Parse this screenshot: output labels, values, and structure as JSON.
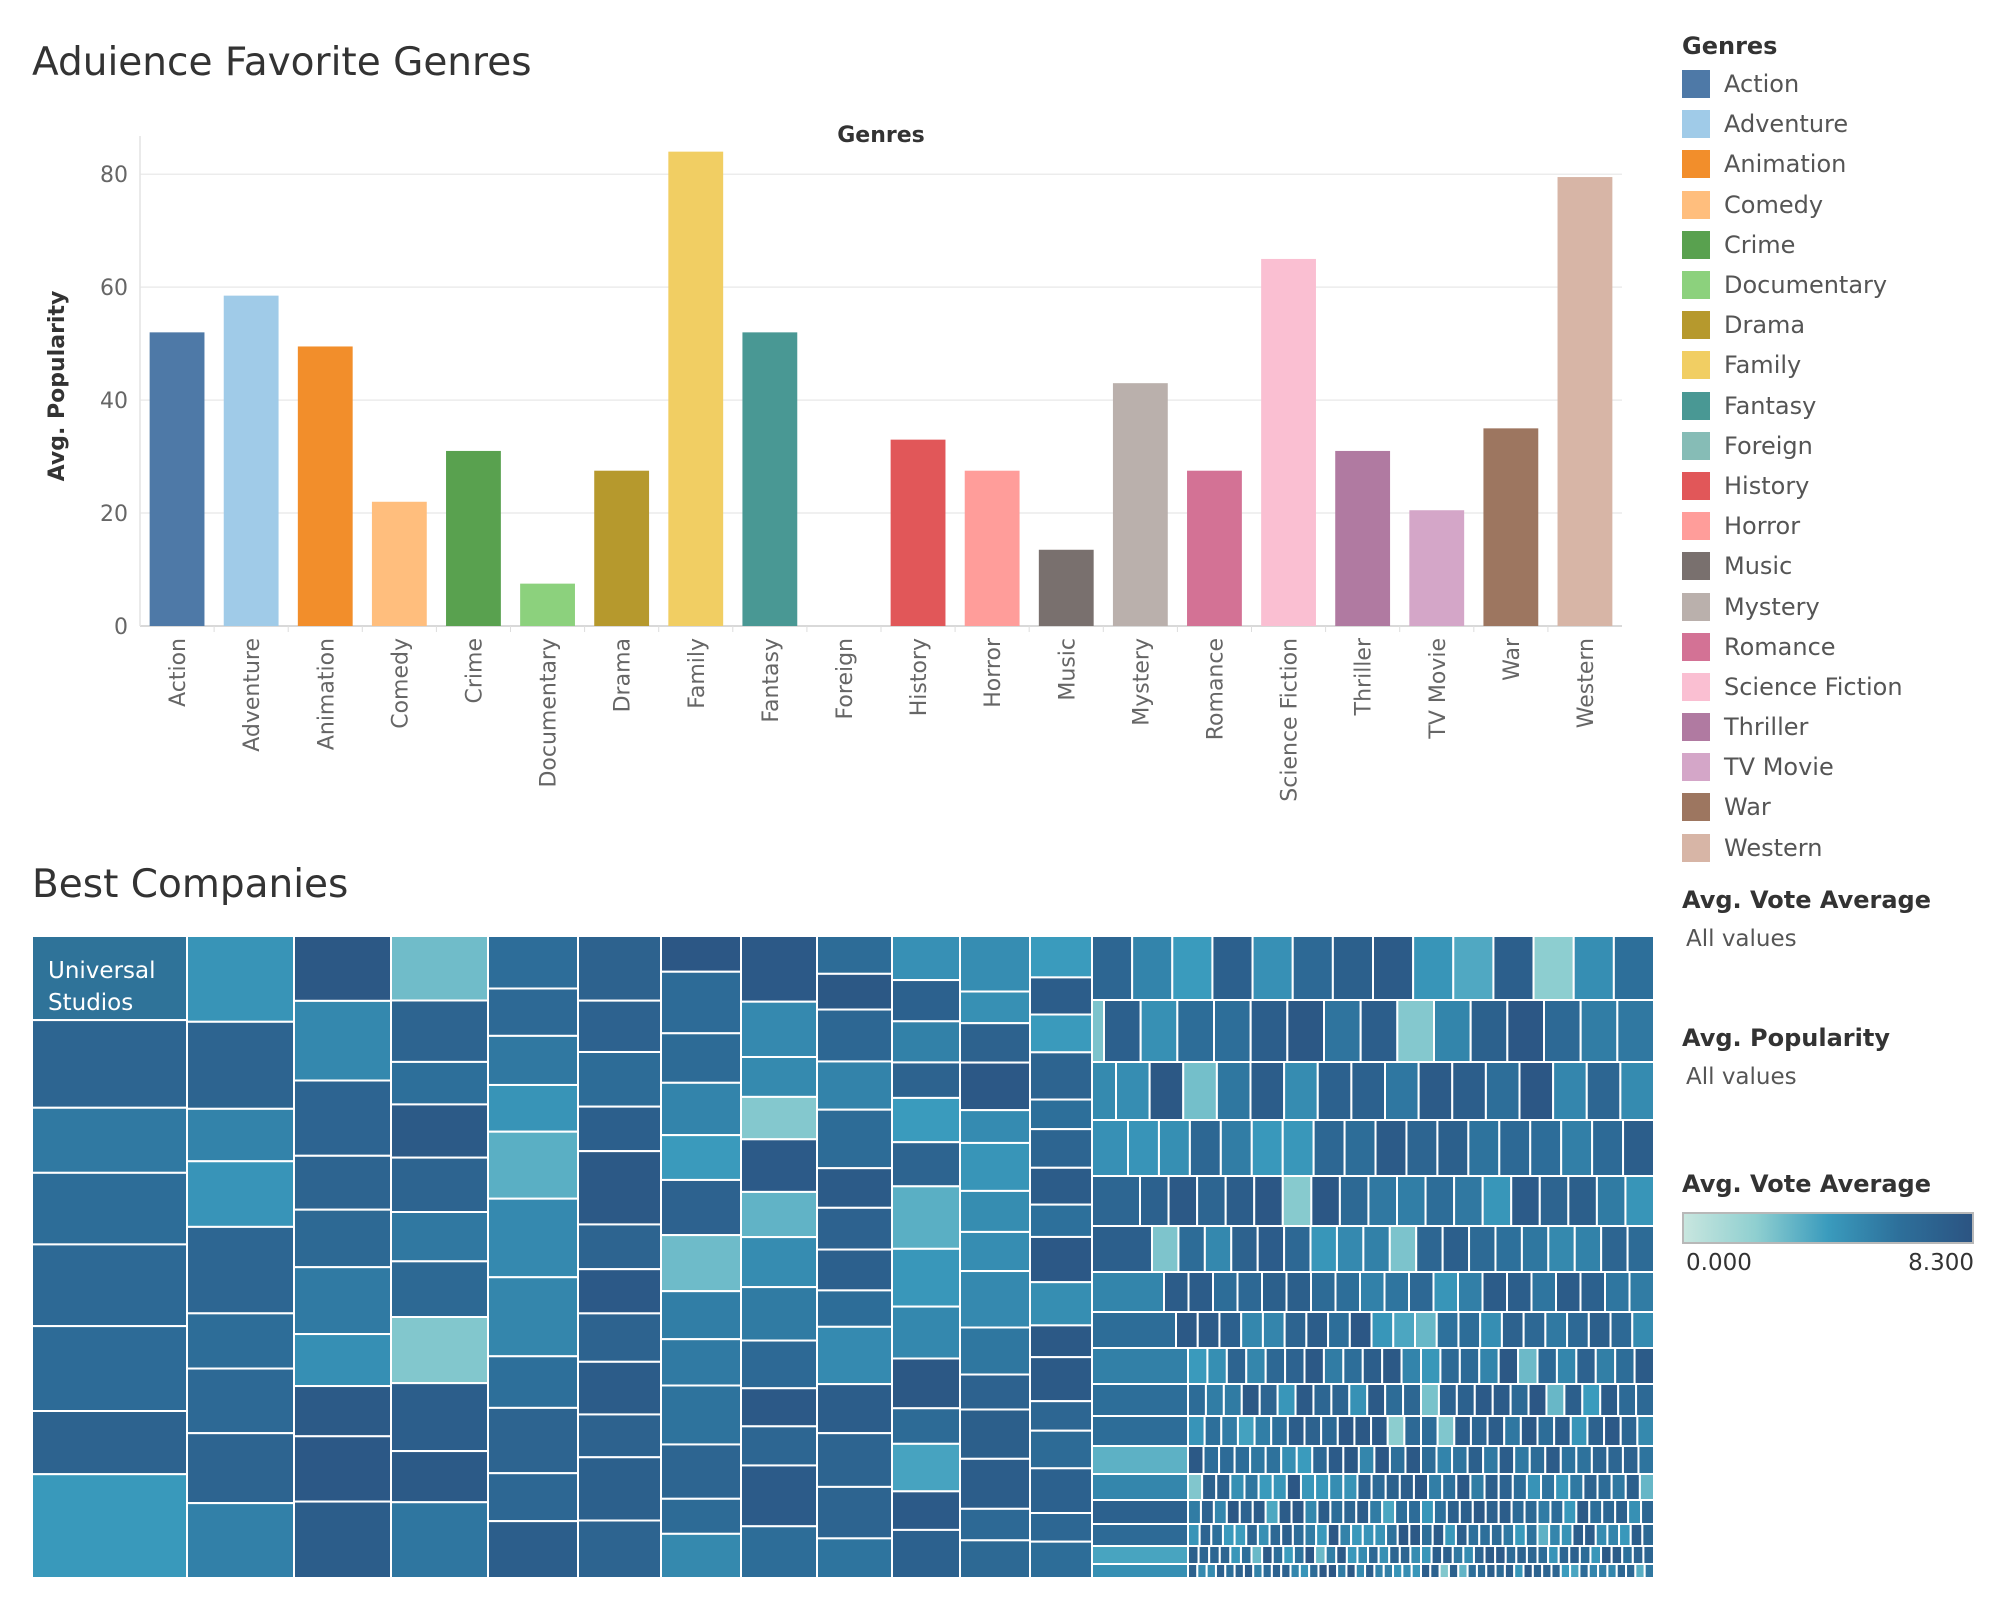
{
  "bar_section": {
    "title": "Aduience Favorite Genres"
  },
  "treemap_section": {
    "title": "Best Companies",
    "label": "Universal Studios"
  },
  "legend": {
    "title": "Genres"
  },
  "filters": [
    {
      "label": "Avg. Vote Average",
      "value": "All values"
    },
    {
      "label": "Avg. Popularity",
      "value": "All values"
    }
  ],
  "color_scale": {
    "label": "Avg. Vote Average",
    "min": "0.000",
    "max": "8.300",
    "colors": [
      "#c8e6df",
      "#8fcfd0",
      "#3a9bbd",
      "#2d6f9a",
      "#2c5482"
    ]
  },
  "chart_data": [
    {
      "type": "bar",
      "title": "Aduience Favorite Genres",
      "header": "Genres",
      "ylabel": "Avg. Popularity",
      "ylim": [
        0,
        88
      ],
      "yticks": [
        0,
        20,
        40,
        60,
        80
      ],
      "grid": true,
      "legend_position": "right",
      "categories": [
        "Action",
        "Adventure",
        "Animation",
        "Comedy",
        "Crime",
        "Documentary",
        "Drama",
        "Family",
        "Fantasy",
        "Foreign",
        "History",
        "Horror",
        "Music",
        "Mystery",
        "Romance",
        "Science Fiction",
        "Thriller",
        "TV Movie",
        "War",
        "Western"
      ],
      "values": [
        52,
        58.5,
        49.5,
        22,
        31,
        7.5,
        27.5,
        84,
        52,
        0,
        33,
        27.5,
        13.5,
        43,
        27.5,
        65,
        31,
        20.5,
        35,
        79.5
      ],
      "colors": [
        "#4e79a7",
        "#a0cbe8",
        "#f28e2b",
        "#ffbe7d",
        "#59a14f",
        "#8cd17d",
        "#b6992d",
        "#f1ce63",
        "#499894",
        "#86bcb6",
        "#e15759",
        "#ff9d9a",
        "#79706e",
        "#bab0ac",
        "#d37295",
        "#fabfd2",
        "#b07aa1",
        "#d4a6c8",
        "#9d7660",
        "#d7b5a6"
      ]
    },
    {
      "type": "treemap",
      "title": "Best Companies",
      "color_measure": "Avg. Vote Average",
      "color_range": [
        0,
        8.3
      ],
      "labeled_items": [
        "Universal Studios"
      ]
    }
  ]
}
